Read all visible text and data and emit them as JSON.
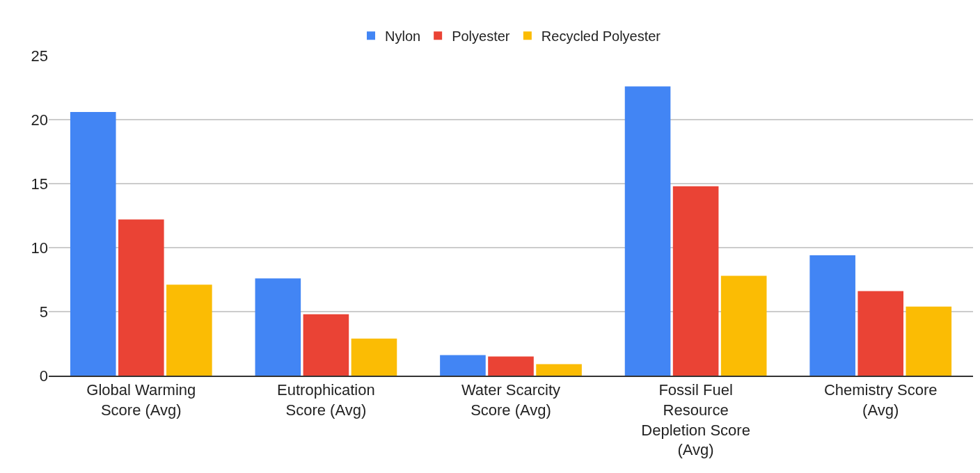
{
  "chart_data": {
    "type": "bar",
    "categories": [
      "Global Warming Score (Avg)",
      "Eutrophication Score (Avg)",
      "Water Scarcity Score (Avg)",
      "Fossil Fuel Resource Depletion Score (Avg)",
      "Chemistry Score (Avg)"
    ],
    "series": [
      {
        "name": "Nylon",
        "color": "#4285f4",
        "values": [
          20.6,
          7.6,
          1.6,
          22.6,
          9.4
        ]
      },
      {
        "name": "Polyester",
        "color": "#ea4335",
        "values": [
          12.2,
          4.8,
          1.5,
          14.8,
          6.6
        ]
      },
      {
        "name": "Recycled Polyester",
        "color": "#fbbc04",
        "values": [
          7.1,
          2.9,
          0.9,
          7.8,
          5.4
        ]
      }
    ],
    "ylim": [
      0,
      25
    ],
    "yticks": [
      0,
      5,
      10,
      15,
      20,
      25
    ],
    "grid": "y",
    "legend": "top"
  }
}
